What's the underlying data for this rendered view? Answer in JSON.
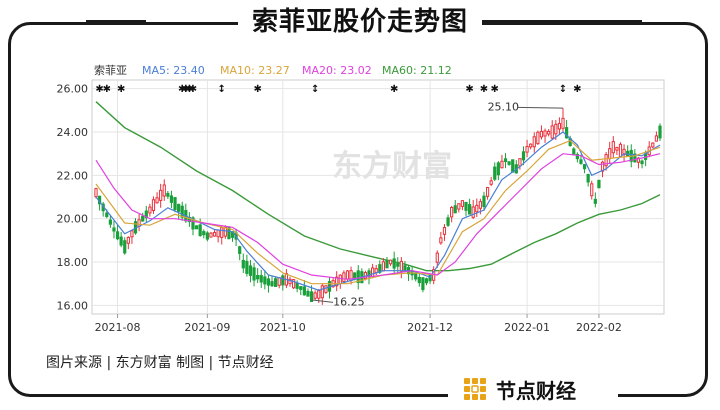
{
  "page_title": "索菲亚股价走势图",
  "source_text": "图片来源 | 东方财富 制图 | 节点财经",
  "brand": {
    "name": "节点财经",
    "logo_color": "#e8a317"
  },
  "watermark": "东方财富",
  "chart_data": {
    "type": "candlestick",
    "stock_name": "索菲亚",
    "ma_legend": [
      {
        "label": "MA5: 23.40",
        "color": "#4a7fd6"
      },
      {
        "label": "MA10: 23.27",
        "color": "#d9a53a"
      },
      {
        "label": "MA20: 23.02",
        "color": "#e040e0"
      },
      {
        "label": "MA60: 21.12",
        "color": "#3a9a3a"
      }
    ],
    "ylim": [
      15.6,
      26.4
    ],
    "yticks": [
      "16.00",
      "18.00",
      "20.00",
      "22.00",
      "24.00",
      "26.00"
    ],
    "x_range": [
      0,
      157
    ],
    "xticks": [
      {
        "label": "2021-08",
        "x": 6
      },
      {
        "label": "2021-09",
        "x": 31
      },
      {
        "label": "2021-10",
        "x": 52
      },
      {
        "label": "2021-12",
        "x": 93
      },
      {
        "label": "2022-01",
        "x": 120
      },
      {
        "label": "2022-02",
        "x": 140
      }
    ],
    "annotations": [
      {
        "text": "25.10",
        "x": 130,
        "y": 25.1,
        "label_x": 109,
        "label_y": 25.0
      },
      {
        "text": "16.25",
        "x": 60,
        "y": 16.25,
        "label_x": 66,
        "label_y": 16.0
      }
    ],
    "markers_top": [
      1,
      3,
      7,
      24,
      25,
      26,
      27,
      35,
      45,
      61,
      83,
      104,
      108,
      111,
      130,
      134
    ],
    "path_y": [
      [
        0,
        21.2
      ],
      [
        5,
        19.5
      ],
      [
        8,
        18.7
      ],
      [
        11,
        19.6
      ],
      [
        15,
        20.4
      ],
      [
        19,
        21.3
      ],
      [
        23,
        20.5
      ],
      [
        28,
        19.6
      ],
      [
        31,
        19.2
      ],
      [
        36,
        19.4
      ],
      [
        39,
        19.2
      ],
      [
        41,
        17.9
      ],
      [
        45,
        17.3
      ],
      [
        49,
        17.0
      ],
      [
        53,
        17.2
      ],
      [
        57,
        16.8
      ],
      [
        60,
        16.4
      ],
      [
        62,
        16.5
      ],
      [
        66,
        17.0
      ],
      [
        70,
        17.4
      ],
      [
        74,
        17.3
      ],
      [
        78,
        17.6
      ],
      [
        82,
        18.0
      ],
      [
        85,
        17.8
      ],
      [
        88,
        17.5
      ],
      [
        91,
        17.0
      ],
      [
        94,
        17.4
      ],
      [
        96,
        19.0
      ],
      [
        99,
        20.3
      ],
      [
        102,
        20.7
      ],
      [
        105,
        20.3
      ],
      [
        108,
        20.8
      ],
      [
        111,
        22.1
      ],
      [
        114,
        22.7
      ],
      [
        117,
        22.3
      ],
      [
        120,
        23.2
      ],
      [
        124,
        23.9
      ],
      [
        127,
        24.0
      ],
      [
        130,
        24.4
      ],
      [
        133,
        23.1
      ],
      [
        136,
        22.4
      ],
      [
        139,
        20.8
      ],
      [
        141,
        22.4
      ],
      [
        144,
        23.3
      ],
      [
        148,
        23.0
      ],
      [
        152,
        22.6
      ],
      [
        155,
        23.4
      ],
      [
        157,
        24.0
      ]
    ],
    "ma_paths": {
      "MA5": [
        [
          0,
          21.0
        ],
        [
          8,
          19.3
        ],
        [
          15,
          19.9
        ],
        [
          20,
          20.5
        ],
        [
          28,
          19.9
        ],
        [
          33,
          19.5
        ],
        [
          38,
          19.4
        ],
        [
          42,
          18.5
        ],
        [
          48,
          17.4
        ],
        [
          55,
          17.1
        ],
        [
          62,
          16.7
        ],
        [
          70,
          17.1
        ],
        [
          80,
          17.6
        ],
        [
          88,
          17.6
        ],
        [
          93,
          17.3
        ],
        [
          97,
          18.3
        ],
        [
          102,
          20.0
        ],
        [
          108,
          20.4
        ],
        [
          113,
          21.8
        ],
        [
          118,
          22.4
        ],
        [
          124,
          23.3
        ],
        [
          130,
          24.0
        ],
        [
          134,
          23.4
        ],
        [
          138,
          22.0
        ],
        [
          142,
          22.3
        ],
        [
          147,
          23.0
        ],
        [
          152,
          22.9
        ],
        [
          157,
          23.4
        ]
      ],
      "MA10": [
        [
          0,
          21.6
        ],
        [
          8,
          19.8
        ],
        [
          15,
          19.7
        ],
        [
          22,
          20.2
        ],
        [
          30,
          19.8
        ],
        [
          38,
          19.5
        ],
        [
          45,
          18.4
        ],
        [
          52,
          17.5
        ],
        [
          60,
          17.0
        ],
        [
          70,
          17.0
        ],
        [
          80,
          17.4
        ],
        [
          88,
          17.5
        ],
        [
          95,
          17.4
        ],
        [
          102,
          19.4
        ],
        [
          108,
          20.0
        ],
        [
          114,
          21.3
        ],
        [
          120,
          22.2
        ],
        [
          126,
          23.2
        ],
        [
          132,
          23.6
        ],
        [
          138,
          22.7
        ],
        [
          144,
          22.8
        ],
        [
          150,
          22.9
        ],
        [
          157,
          23.3
        ]
      ],
      "MA20": [
        [
          0,
          22.7
        ],
        [
          5,
          21.4
        ],
        [
          10,
          20.4
        ],
        [
          15,
          20.0
        ],
        [
          22,
          20.0
        ],
        [
          30,
          19.8
        ],
        [
          38,
          19.6
        ],
        [
          45,
          18.9
        ],
        [
          52,
          17.9
        ],
        [
          60,
          17.4
        ],
        [
          70,
          17.2
        ],
        [
          80,
          17.4
        ],
        [
          88,
          17.6
        ],
        [
          95,
          17.4
        ],
        [
          100,
          18.0
        ],
        [
          106,
          19.3
        ],
        [
          112,
          20.3
        ],
        [
          118,
          21.3
        ],
        [
          124,
          22.3
        ],
        [
          130,
          23.0
        ],
        [
          135,
          22.9
        ],
        [
          140,
          22.5
        ],
        [
          146,
          22.6
        ],
        [
          152,
          22.8
        ],
        [
          157,
          23.0
        ]
      ],
      "MA60": [
        [
          0,
          25.4
        ],
        [
          8,
          24.2
        ],
        [
          18,
          23.3
        ],
        [
          28,
          22.2
        ],
        [
          38,
          21.3
        ],
        [
          48,
          20.2
        ],
        [
          58,
          19.2
        ],
        [
          68,
          18.6
        ],
        [
          78,
          18.2
        ],
        [
          86,
          17.9
        ],
        [
          92,
          17.6
        ],
        [
          98,
          17.6
        ],
        [
          104,
          17.7
        ],
        [
          110,
          17.9
        ],
        [
          116,
          18.4
        ],
        [
          122,
          18.9
        ],
        [
          128,
          19.3
        ],
        [
          134,
          19.8
        ],
        [
          140,
          20.2
        ],
        [
          146,
          20.4
        ],
        [
          152,
          20.7
        ],
        [
          157,
          21.1
        ]
      ]
    },
    "colors": {
      "up": "#e8323c",
      "down": "#1aa03a",
      "grid": "#e4e4e4",
      "axis_text": "#333333"
    },
    "grid": true
  }
}
